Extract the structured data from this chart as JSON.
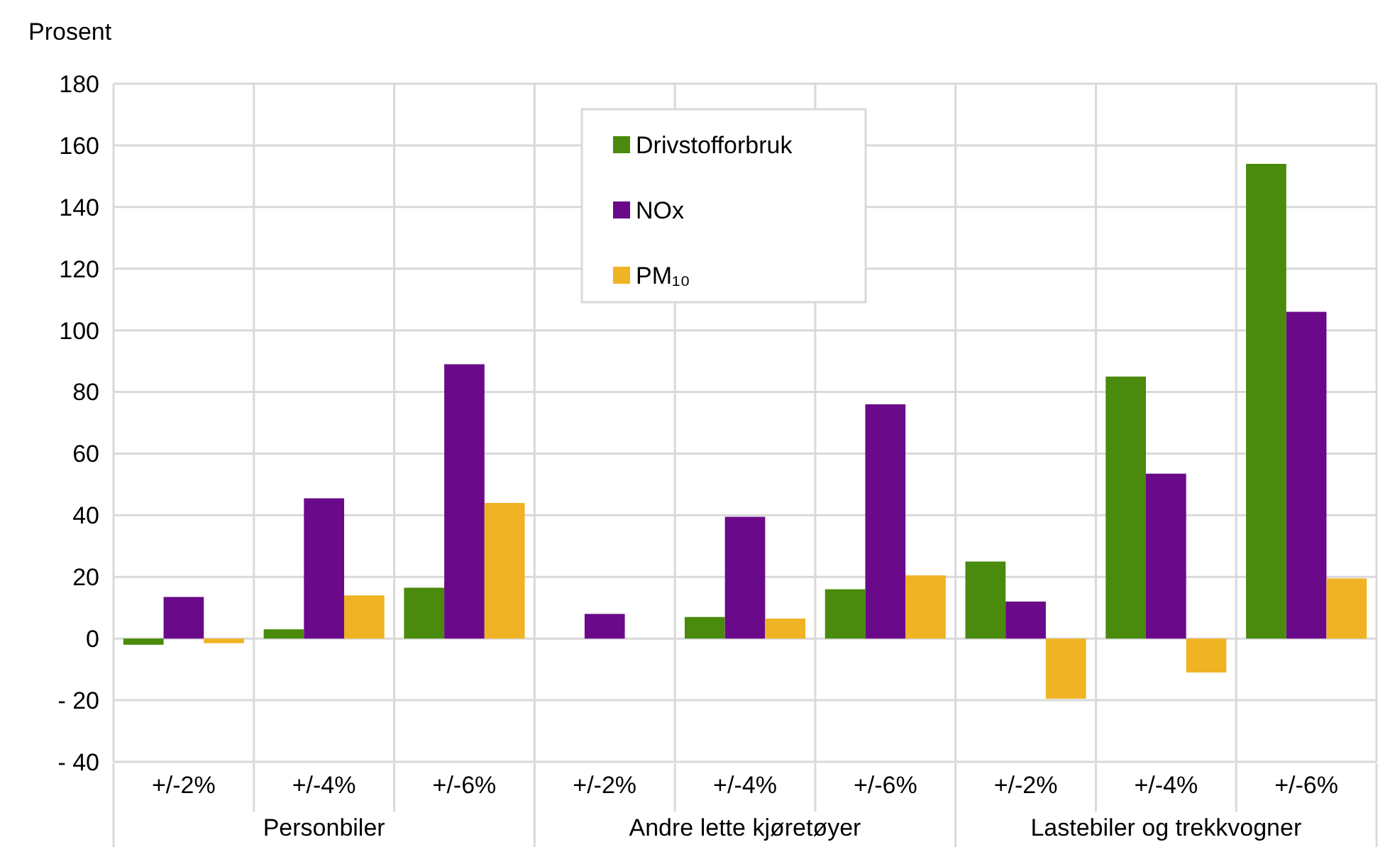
{
  "chart_data": {
    "type": "bar",
    "ylabel": "Prosent",
    "categories": [
      "+/-2%",
      "+/-4%",
      "+/-6%",
      "+/-2%",
      "+/-4%",
      "+/-6%",
      "+/-2%",
      "+/-4%",
      "+/-6%"
    ],
    "annotations": [
      "Personbiler",
      "Andre lette kjøretøyer",
      "Lastebiler og trekkvogner"
    ],
    "series": [
      {
        "name": "Drivstofforbruk",
        "color": "#4a8a0c",
        "values": [
          -2,
          3,
          16.5,
          0,
          7,
          16,
          25,
          85,
          154
        ]
      },
      {
        "name": "NOx",
        "color": "#6a0a8a",
        "values": [
          13.5,
          45.5,
          89,
          8,
          39.5,
          76,
          12,
          53.5,
          106
        ]
      },
      {
        "name": "PM₁₀",
        "color": "#f0b323",
        "values": [
          -1.5,
          14,
          44,
          0,
          6.5,
          20.5,
          -19.5,
          -11,
          19.5
        ]
      }
    ],
    "ylim": [
      -40,
      180
    ],
    "yticks": [
      {
        "value": -40,
        "label": "- 40"
      },
      {
        "value": -20,
        "label": "- 20"
      },
      0,
      20,
      40,
      60,
      80,
      100,
      120,
      140,
      160,
      180
    ],
    "grid": true,
    "legend": "top"
  }
}
